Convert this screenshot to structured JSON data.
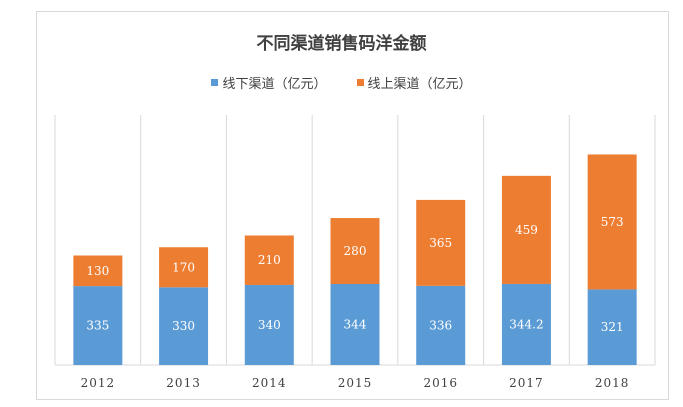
{
  "chart_data": {
    "type": "bar",
    "stacked": true,
    "title": "不同渠道销售码洋金额",
    "categories": [
      "2012",
      "2013",
      "2014",
      "2015",
      "2016",
      "2017",
      "2018"
    ],
    "series": [
      {
        "name": "线下渠道（亿元）",
        "color": "#5b9bd5",
        "values": [
          335,
          330,
          340,
          344,
          336,
          344.2,
          321
        ],
        "labels": [
          "335",
          "330",
          "340",
          "344",
          "336",
          "344.2",
          "321"
        ]
      },
      {
        "name": "线上渠道（亿元）",
        "color": "#ed7d31",
        "values": [
          130,
          170,
          210,
          280,
          365,
          459,
          573
        ],
        "labels": [
          "130",
          "170",
          "210",
          "280",
          "365",
          "459",
          "573"
        ]
      }
    ],
    "legend_position": "top",
    "grid": "vertical category separators"
  }
}
